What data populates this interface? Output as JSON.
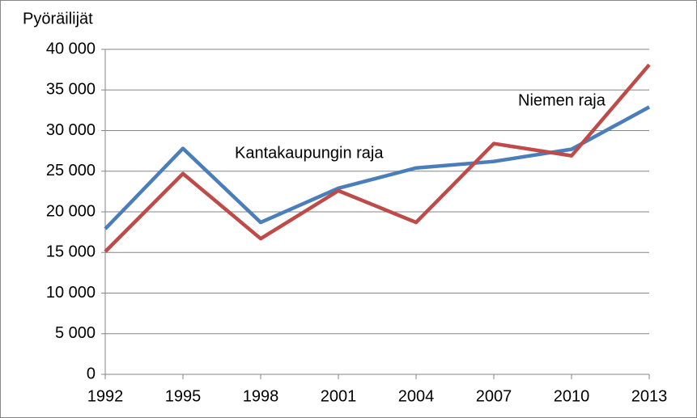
{
  "chart_data": {
    "type": "line",
    "y_label": "Pyöräilijät",
    "categories": [
      "1992",
      "1995",
      "1998",
      "2001",
      "2004",
      "2007",
      "2010",
      "2013"
    ],
    "series": [
      {
        "name": "Kantakaupungin raja",
        "color": "#4a7ebb",
        "values": [
          17900,
          27800,
          18700,
          22900,
          25400,
          26200,
          27700,
          32900
        ]
      },
      {
        "name": "Niemen raja",
        "color": "#be4b48",
        "values": [
          15100,
          24700,
          16700,
          22600,
          18700,
          28400,
          26900,
          38100
        ]
      }
    ],
    "ylim": [
      0,
      40000
    ],
    "yticks": [
      0,
      {
        "value": 5000,
        "label": "5 000"
      },
      {
        "value": 10000,
        "label": "10 000"
      },
      {
        "value": 15000,
        "label": "15 000"
      },
      {
        "value": 20000,
        "label": "20 000"
      },
      {
        "value": 25000,
        "label": "25 000"
      },
      {
        "value": 30000,
        "label": "30 000"
      },
      {
        "value": 35000,
        "label": "35 000"
      },
      {
        "value": 40000,
        "label": "40 000"
      }
    ],
    "grid": true
  }
}
